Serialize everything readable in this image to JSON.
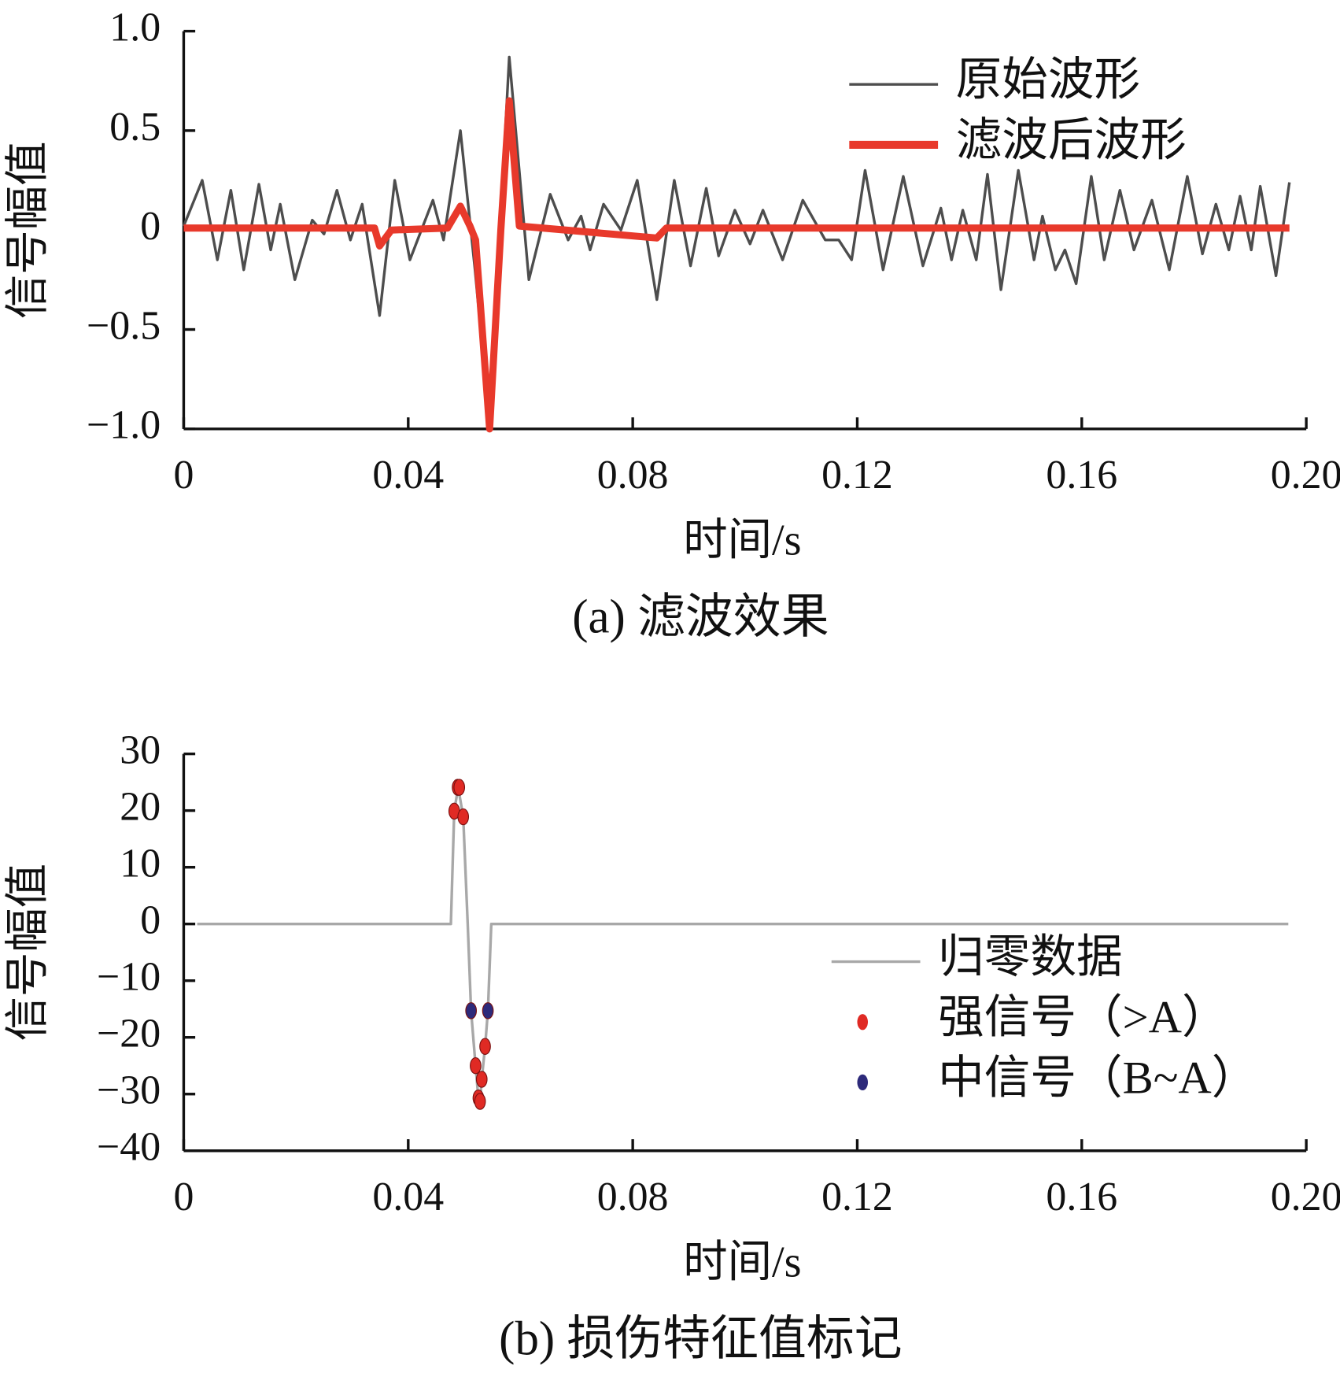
{
  "chart_data": [
    {
      "type": "line",
      "title": "(a)  滤波效果",
      "xlabel": "时间/s",
      "ylabel": "信号幅值",
      "xlim": [
        0,
        0.2
      ],
      "xticks": [
        0,
        0.04,
        0.08,
        0.12,
        0.16,
        {
          "value": 0.2,
          "label": "0.20"
        }
      ],
      "ylim": [
        -1,
        1
      ],
      "yticks": [
        {
          "value": -1,
          "label": "−1.0"
        },
        {
          "value": -0.5,
          "label": "−0.5"
        },
        0,
        0.5,
        {
          "value": 1,
          "label": "1.0"
        }
      ],
      "legend": "upper right",
      "series": [
        {
          "name": "原始波形",
          "type": "line",
          "color": "#4d4d4d",
          "x": [
            0,
            0.0033,
            0.006,
            0.0084,
            0.0107,
            0.0134,
            0.0155,
            0.0172,
            0.0198,
            0.0229,
            0.025,
            0.0273,
            0.0297,
            0.0318,
            0.0349,
            0.0376,
            0.0403,
            0.0444,
            0.0463,
            0.0493,
            0.0519,
            0.0545,
            0.058,
            0.0615,
            0.0653,
            0.0685,
            0.0708,
            0.0724,
            0.0748,
            0.0779,
            0.0808,
            0.0843,
            0.0874,
            0.0903,
            0.0931,
            0.0953,
            0.0982,
            0.1009,
            0.1032,
            0.1067,
            0.1103,
            0.1143,
            0.1167,
            0.119,
            0.1214,
            0.1246,
            0.1282,
            0.1317,
            0.1349,
            0.1368,
            0.1388,
            0.1412,
            0.1432,
            0.1456,
            0.1487,
            0.1515,
            0.153,
            0.1553,
            0.157,
            0.159,
            0.1617,
            0.164,
            0.1668,
            0.1693,
            0.1725,
            0.1756,
            0.1788,
            0.1815,
            0.1839,
            0.1862,
            0.1882,
            0.1902,
            0.1918,
            0.1946,
            0.197
          ],
          "values": [
            0.02,
            0.25,
            -0.15,
            0.2,
            -0.2,
            0.23,
            -0.1,
            0.13,
            -0.25,
            0.05,
            -0.02,
            0.2,
            -0.05,
            0.13,
            -0.43,
            0.25,
            -0.15,
            0.15,
            -0.05,
            0.5,
            -0.2,
            -0.98,
            0.87,
            -0.25,
            0.18,
            -0.05,
            0.07,
            -0.1,
            0.13,
            0,
            0.25,
            -0.35,
            0.25,
            -0.18,
            0.21,
            -0.13,
            0.1,
            -0.07,
            0.1,
            -0.15,
            0.15,
            -0.05,
            -0.05,
            -0.15,
            0.3,
            -0.2,
            0.27,
            -0.18,
            0.11,
            -0.15,
            0.1,
            -0.15,
            0.28,
            -0.3,
            0.3,
            -0.15,
            0.07,
            -0.2,
            -0.1,
            -0.27,
            0.27,
            -0.15,
            0.2,
            -0.1,
            0.15,
            -0.2,
            0.27,
            -0.12,
            0.13,
            -0.1,
            0.17,
            -0.1,
            0.22,
            -0.23,
            0.24
          ]
        },
        {
          "name": "滤波后波形",
          "type": "line",
          "color": "#e8392b",
          "x": [
            0,
            0.034,
            0.0349,
            0.037,
            0.047,
            0.0493,
            0.051,
            0.052,
            0.0545,
            0.0565,
            0.058,
            0.0598,
            0.0843,
            0.086,
            0.197
          ],
          "values": [
            0.01,
            0.01,
            -0.08,
            0,
            0.01,
            0.12,
            0.02,
            -0.05,
            -1.0,
            0,
            0.65,
            0.02,
            -0.04,
            0.01,
            0.01
          ]
        }
      ]
    },
    {
      "type": "line",
      "title": "(b)  损伤特征值标记",
      "xlabel": "时间/s",
      "ylabel": "信号幅值",
      "xlim": [
        0,
        0.2
      ],
      "xticks": [
        0,
        0.04,
        0.08,
        0.12,
        0.16,
        {
          "value": 0.2,
          "label": "0.20"
        }
      ],
      "ylim": [
        -40,
        30
      ],
      "yticks": [
        {
          "value": -40,
          "label": "−40"
        },
        {
          "value": -30,
          "label": "−30"
        },
        {
          "value": -20,
          "label": "−20"
        },
        {
          "value": -10,
          "label": "−10"
        },
        0,
        10,
        20,
        30
      ],
      "legend": "lower right",
      "series": [
        {
          "name": "归零数据",
          "type": "line",
          "color": "#a8a8a8",
          "x": [
            0.0024,
            0.0476,
            0.0482,
            0.0489,
            0.0498,
            0.0506,
            0.0512,
            0.052,
            0.0525,
            0.0528,
            0.0531,
            0.0537,
            0.0542,
            0.0548,
            0.1968
          ],
          "values": [
            0,
            0,
            19.9,
            24.1,
            18.9,
            0,
            -15.3,
            -25,
            -30.7,
            -31.3,
            -27.4,
            -21.6,
            -15.3,
            0,
            0
          ]
        },
        {
          "name": "强信号（>A）",
          "type": "scatter",
          "color": "#e02a24",
          "x": [
            0.0482,
            0.0488,
            0.0491,
            0.0498,
            0.052,
            0.0525,
            0.0528,
            0.0531,
            0.0537
          ],
          "values": [
            19.9,
            24.1,
            24.1,
            18.9,
            -25,
            -30.7,
            -31.3,
            -27.4,
            -21.6
          ]
        },
        {
          "name": "中信号（B~A）",
          "type": "scatter",
          "color": "#2d2a7a",
          "x": [
            0.0512,
            0.0542
          ],
          "values": [
            -15.3,
            -15.3
          ]
        }
      ]
    }
  ]
}
